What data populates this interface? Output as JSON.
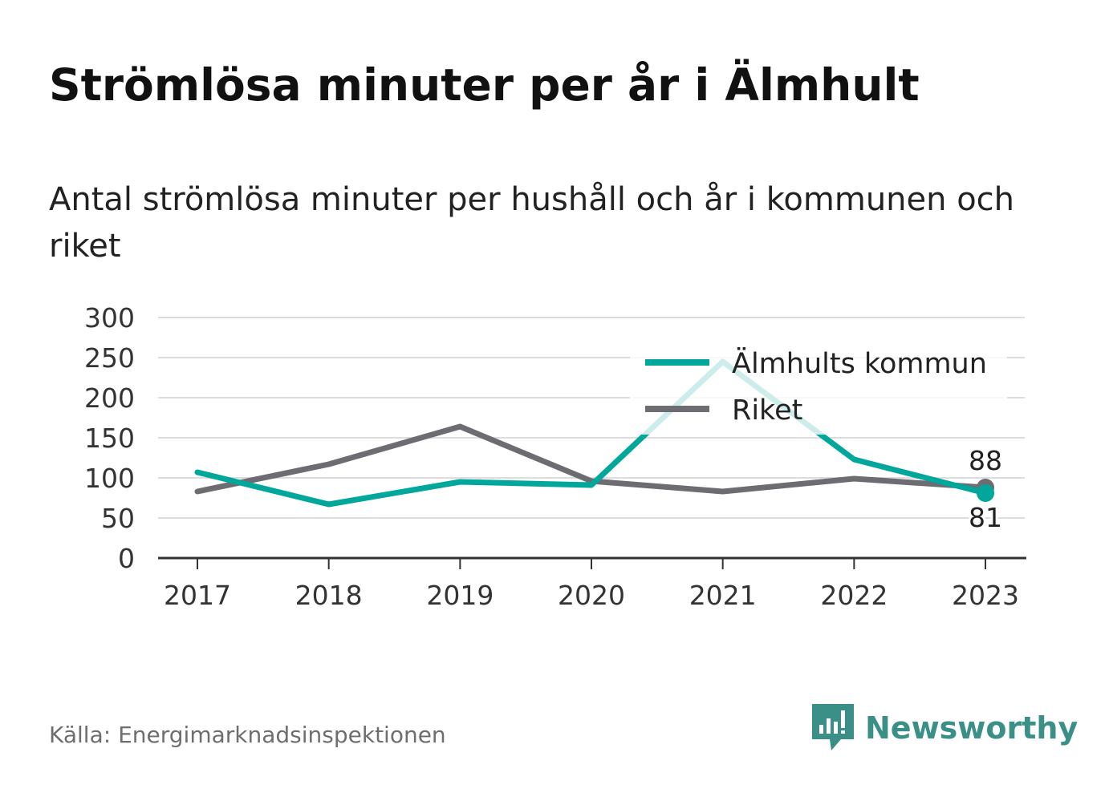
{
  "header": {
    "title": "Strömlösa minuter per år i Älmhult",
    "subtitle": "Antal strömlösa minuter per hushåll och år i kommunen och riket"
  },
  "footer": {
    "source": "Källa: Energimarknadsinspektionen",
    "brand": "Newsworthy",
    "brand_icon": "bar-chart-speech-bubble-icon"
  },
  "colors": {
    "kommun": "#00a79a",
    "riket": "#6d6c73",
    "grid": "#dddddd",
    "axis": "#333333",
    "brand": "#3a8f86"
  },
  "chart_data": {
    "type": "line",
    "x": [
      "2017",
      "2018",
      "2019",
      "2020",
      "2021",
      "2022",
      "2023"
    ],
    "y_ticks": [
      0,
      50,
      100,
      150,
      200,
      250,
      300
    ],
    "ylim": [
      0,
      300
    ],
    "grid": true,
    "legend_position": "top-right",
    "series": [
      {
        "name": "Älmhults kommun",
        "color": "#00a79a",
        "values": [
          107,
          67,
          95,
          91,
          245,
          123,
          81
        ],
        "end_label": "81"
      },
      {
        "name": "Riket",
        "color": "#6d6c73",
        "values": [
          83,
          117,
          164,
          96,
          83,
          99,
          88
        ],
        "end_label": "88"
      }
    ]
  }
}
